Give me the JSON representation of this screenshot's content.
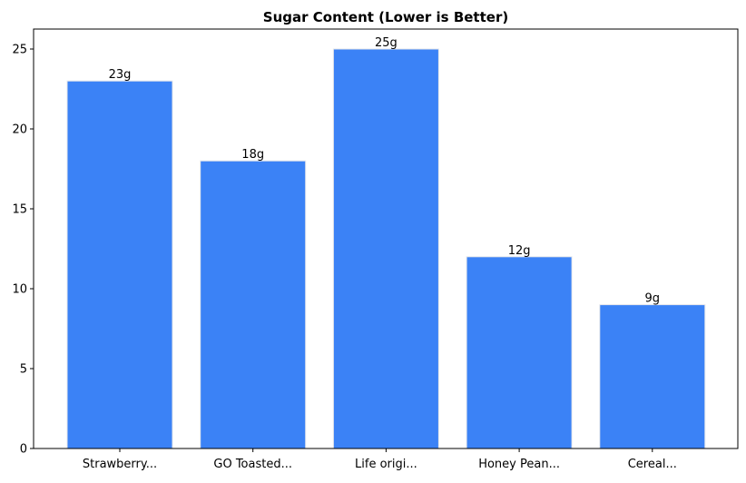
{
  "chart_data": {
    "type": "bar",
    "title": "Sugar Content (Lower is Better)",
    "xlabel": "",
    "ylabel": "",
    "categories": [
      "Strawberry...",
      "GO Toasted...",
      "Life origi...",
      "Honey Pean...",
      "Cereal..."
    ],
    "values": [
      23,
      18,
      25,
      12,
      9
    ],
    "data_labels": [
      "23g",
      "18g",
      "25g",
      "12g",
      "9g"
    ],
    "ylim": [
      0,
      26.25
    ],
    "yticks": [
      0,
      5,
      10,
      15,
      20,
      25
    ],
    "grid": false,
    "bar_color": "#3b82f6",
    "bar_edge_color": "#e5e7eb"
  }
}
